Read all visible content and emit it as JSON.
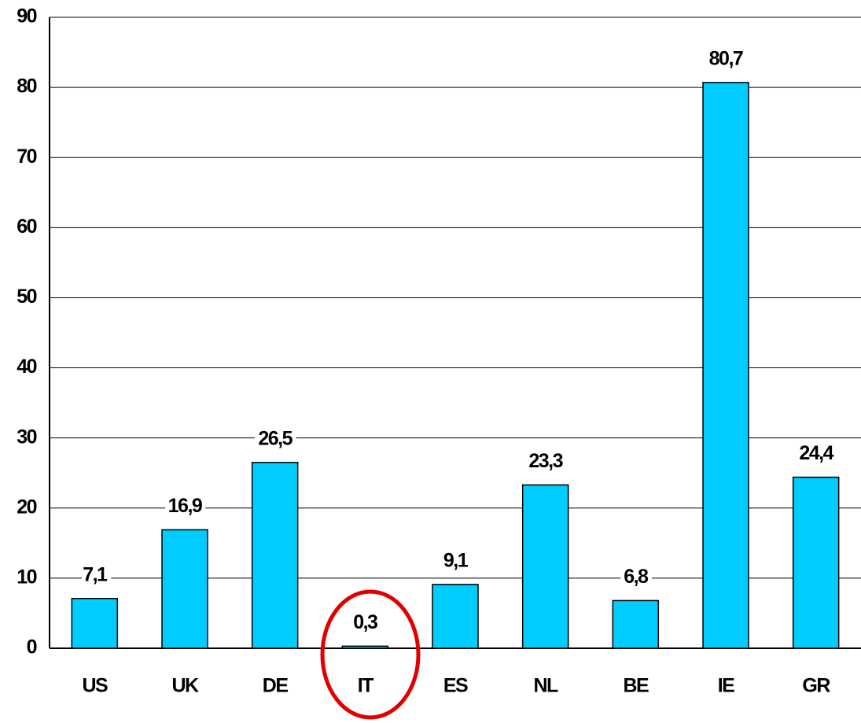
{
  "chart_data": {
    "type": "bar",
    "categories": [
      "US",
      "UK",
      "DE",
      "IT",
      "ES",
      "NL",
      "BE",
      "IE",
      "GR"
    ],
    "values": [
      7.1,
      16.9,
      26.5,
      0.3,
      9.1,
      23.3,
      6.8,
      80.7,
      24.4
    ],
    "value_labels": [
      "7,1",
      "16,9",
      "26,5",
      "0,3",
      "9,1",
      "23,3",
      "6,8",
      "80,7",
      "24,4"
    ],
    "color": "#00ccff",
    "ylim": [
      0,
      90
    ],
    "yticks": [
      0,
      10,
      20,
      30,
      40,
      50,
      60,
      70,
      80,
      90
    ],
    "grid": true
  }
}
